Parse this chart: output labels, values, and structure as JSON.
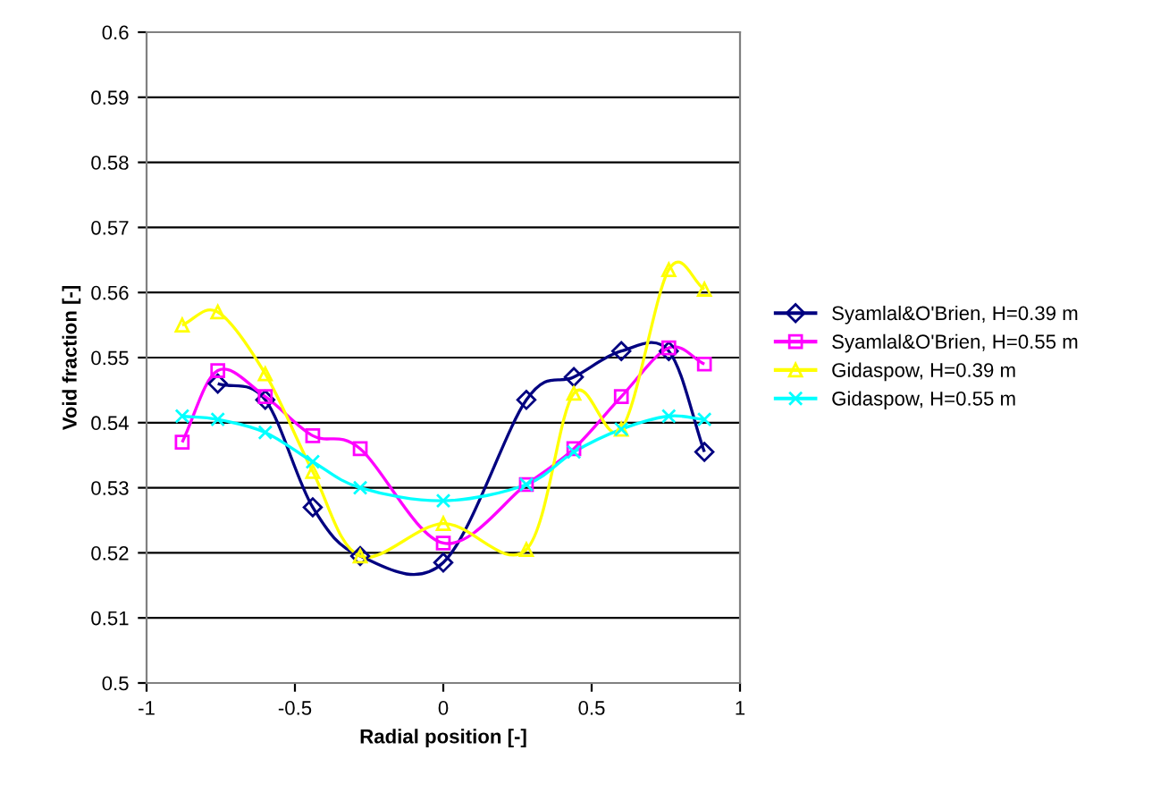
{
  "chart_data": {
    "type": "line",
    "xlabel": "Radial position [-]",
    "ylabel": "Void fraction [-]",
    "xlim": [
      -1,
      1
    ],
    "xticks": [
      -1,
      -0.5,
      0,
      0.5,
      1
    ],
    "ylim": [
      0.5,
      0.6
    ],
    "yticks": [
      0.5,
      0.51,
      0.52,
      0.53,
      0.54,
      0.55,
      0.56,
      0.57,
      0.58,
      0.59,
      0.6
    ],
    "grid": "y",
    "legend": "right",
    "series": [
      {
        "name": "Syamlal&O'Brien, H=0.39 m",
        "color": "#000080",
        "marker": "diamond",
        "x": [
          -0.76,
          -0.6,
          -0.44,
          -0.28,
          0,
          0.28,
          0.44,
          0.6,
          0.76,
          0.88
        ],
        "values": [
          0.546,
          0.5435,
          0.527,
          0.5195,
          0.5185,
          0.5435,
          0.547,
          0.551,
          0.551,
          0.5355
        ]
      },
      {
        "name": "Syamlal&O'Brien, H=0.55 m",
        "color": "#ff00ff",
        "marker": "square",
        "x": [
          -0.88,
          -0.76,
          -0.6,
          -0.44,
          -0.28,
          0,
          0.28,
          0.44,
          0.6,
          0.76,
          0.88
        ],
        "values": [
          0.537,
          0.548,
          0.544,
          0.538,
          0.536,
          0.5215,
          0.5305,
          0.536,
          0.544,
          0.5515,
          0.549
        ]
      },
      {
        "name": "Gidaspow, H=0.39 m",
        "color": "#ffff00",
        "marker": "triangle",
        "x": [
          -0.88,
          -0.76,
          -0.6,
          -0.44,
          -0.28,
          0,
          0.28,
          0.44,
          0.6,
          0.76,
          0.88
        ],
        "values": [
          0.555,
          0.557,
          0.5475,
          0.5325,
          0.5195,
          0.5245,
          0.5205,
          0.5445,
          0.539,
          0.5635,
          0.5605
        ]
      },
      {
        "name": "Gidaspow, H=0.55 m",
        "color": "#00ffff",
        "marker": "cross",
        "x": [
          -0.88,
          -0.76,
          -0.6,
          -0.44,
          -0.28,
          0,
          0.28,
          0.44,
          0.6,
          0.76,
          0.88
        ],
        "values": [
          0.541,
          0.5405,
          0.5385,
          0.534,
          0.53,
          0.528,
          0.5305,
          0.5355,
          0.539,
          0.541,
          0.5405
        ]
      }
    ]
  }
}
